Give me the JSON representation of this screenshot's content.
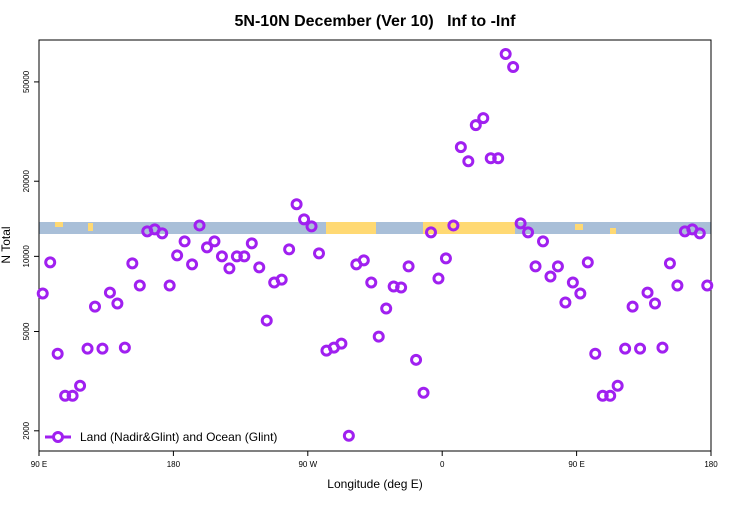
{
  "chart_data": {
    "type": "scatter",
    "title": "5N-10N December (Ver 10)   Inf to -Inf",
    "x_label": "Longitude (deg E)",
    "y_label": "N Total",
    "log_y": true,
    "legend_position": "bottom-left",
    "xlim": [
      90,
      540
    ],
    "ylim": [
      1660,
      73600
    ],
    "xticks": [
      {
        "value": 90,
        "label": "90 E"
      },
      180,
      {
        "value": 270,
        "label": "90 W"
      },
      {
        "value": 360,
        "label": "0"
      },
      {
        "value": 450,
        "label": "90 E"
      },
      {
        "value": 540,
        "label": "180"
      }
    ],
    "yticks": [
      2000,
      5000,
      10000,
      20000,
      50000
    ],
    "series": [
      {
        "name": "Land (Nadir&Glint) and Ocean (Glint)",
        "color": "#a020f0",
        "x": [
          92.5,
          97.5,
          102.5,
          107.5,
          112.5,
          117.5,
          122.5,
          127.5,
          132.5,
          137.5,
          142.5,
          147.5,
          152.5,
          157.5,
          162.5,
          167.5,
          172.5,
          177.5,
          182.5,
          187.5,
          192.5,
          197.5,
          202.5,
          207.5,
          212.5,
          217.5,
          222.5,
          227.5,
          232.5,
          237.5,
          242.5,
          247.5,
          252.5,
          257.5,
          262.5,
          267.5,
          272.5,
          277.5,
          282.5,
          287.5,
          292.5,
          297.5,
          302.5,
          307.5,
          312.5,
          317.5,
          322.5,
          327.5,
          332.5,
          337.5,
          342.5,
          347.5,
          352.5,
          357.5,
          362.5,
          367.5,
          372.5,
          377.5,
          382.5,
          387.5,
          392.5,
          397.5,
          402.5,
          407.5,
          412.5,
          417.5,
          422.5,
          427.5,
          432.5,
          437.5,
          442.5,
          447.5,
          452.5,
          457.5,
          462.5,
          467.5,
          472.5,
          477.5,
          482.5,
          487.5,
          492.5,
          497.5,
          502.5,
          507.5,
          512.5,
          517.5,
          522.5,
          527.5,
          532.5,
          537.5
        ],
        "values": [
          7100,
          9460,
          4070,
          2765,
          2765,
          3030,
          4270,
          6290,
          4270,
          7160,
          6470,
          4310,
          9370,
          7640,
          12590,
          12830,
          12360,
          7640,
          10090,
          11480,
          9290,
          13300,
          10860,
          11480,
          10000,
          8950,
          10000,
          10000,
          11270,
          9030,
          5530,
          7860,
          8070,
          10660,
          16180,
          14060,
          13180,
          10280,
          4190,
          4310,
          4470,
          1910,
          9290,
          9640,
          7860,
          4770,
          6180,
          7570,
          7500,
          9120,
          3850,
          2840,
          12470,
          8150,
          9820,
          13300,
          27400,
          24050,
          33570,
          35810,
          24730,
          24730,
          64700,
          57400,
          13550,
          12470,
          9120,
          11480,
          8300,
          9120,
          6530,
          7860,
          7100,
          9460,
          4070,
          2765,
          2765,
          3030,
          4270,
          6290,
          4270,
          7160,
          6470,
          4310,
          9370,
          7640,
          12590,
          12830,
          12360,
          7640
        ]
      }
    ]
  }
}
